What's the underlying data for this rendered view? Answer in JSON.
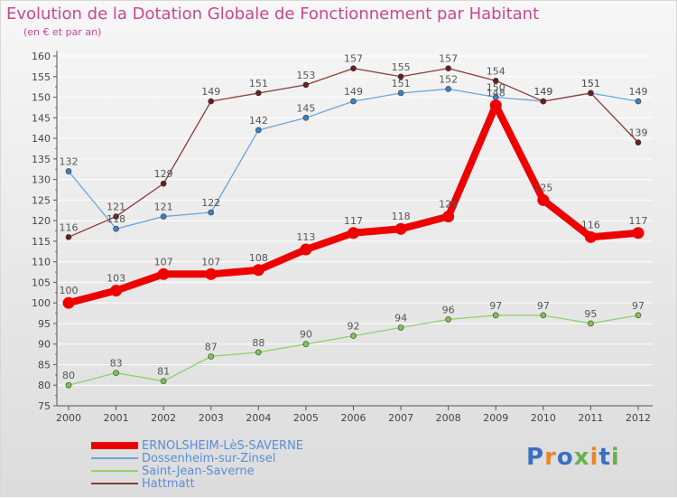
{
  "title": "Evolution de la Dotation Globale de Fonctionnement par Habitant",
  "subtitle": "(en € et par an)",
  "logo": {
    "text": "Proxiti",
    "letter_colors": [
      "#3a6fc4",
      "#e8862a",
      "#3a6fc4",
      "#6ab04c",
      "#e8862a",
      "#3a6fc4",
      "#6ab04c"
    ]
  },
  "chart_data": {
    "type": "line",
    "x": [
      "2000",
      "2001",
      "2002",
      "2003",
      "2004",
      "2005",
      "2006",
      "2007",
      "2008",
      "2009",
      "2010",
      "2011",
      "2012"
    ],
    "ylim": [
      75,
      160
    ],
    "yticks": [
      75,
      80,
      85,
      90,
      95,
      100,
      105,
      110,
      115,
      120,
      125,
      130,
      135,
      140,
      145,
      150,
      155,
      160
    ],
    "grid": "horizontal",
    "series": [
      {
        "name": "Saint-Jean-Saverne",
        "color": "#8fd16a",
        "dot": "#7cc84e",
        "width": 1.3,
        "r": 3,
        "labels": true,
        "values": [
          80,
          83,
          81,
          87,
          88,
          90,
          92,
          94,
          96,
          97,
          97,
          95,
          97
        ]
      },
      {
        "name": "Dossenheim-sur-Zinsel",
        "color": "#6aa6dc",
        "dot": "#3b82c4",
        "width": 1.3,
        "r": 3,
        "labels": true,
        "values": [
          132,
          118,
          121,
          122,
          142,
          145,
          149,
          151,
          152,
          150,
          149,
          151,
          149
        ]
      },
      {
        "name": "Hattmatt",
        "color": "#8b3a3a",
        "dot": "#6b1d1d",
        "width": 1.3,
        "r": 3,
        "labels": true,
        "values": [
          116,
          121,
          129,
          149,
          151,
          153,
          157,
          155,
          157,
          154,
          149,
          151,
          139
        ]
      },
      {
        "name": "ERNOLSHEIM-LèS-SAVERNE",
        "color": "#ee0000",
        "dot": "#ee0000",
        "width": 8,
        "r": 6.5,
        "labels": true,
        "values": [
          100,
          103,
          107,
          107,
          108,
          113,
          117,
          118,
          121,
          148,
          125,
          116,
          117
        ]
      }
    ],
    "legend": [
      "ERNOLSHEIM-LèS-SAVERNE",
      "Dossenheim-sur-Zinsel",
      "Saint-Jean-Saverne",
      "Hattmatt"
    ]
  }
}
